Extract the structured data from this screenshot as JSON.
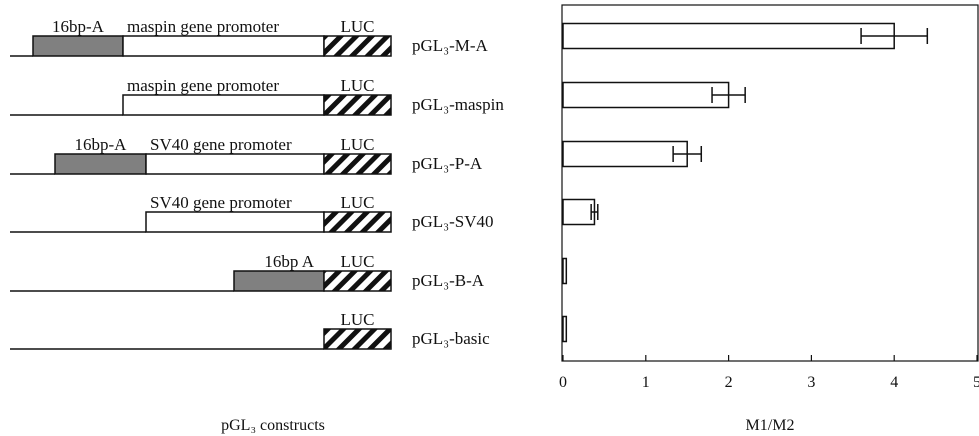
{
  "figure": {
    "left_title": "pGL₃ constructs",
    "constructs": [
      {
        "name": "pGL₃-M-A",
        "segments": [
          {
            "kind": "grey",
            "label": "16bp-A"
          },
          {
            "kind": "white",
            "label": "maspin gene promoter"
          },
          {
            "kind": "hatch",
            "label": "LUC"
          }
        ]
      },
      {
        "name": "pGL₃-maspin",
        "segments": [
          {
            "kind": "white",
            "label": "maspin gene promoter"
          },
          {
            "kind": "hatch",
            "label": "LUC"
          }
        ]
      },
      {
        "name": "pGL₃-P-A",
        "segments": [
          {
            "kind": "grey",
            "label": "16bp-A"
          },
          {
            "kind": "white",
            "label": "SV40 gene promoter"
          },
          {
            "kind": "hatch",
            "label": "LUC"
          }
        ]
      },
      {
        "name": "pGL₃-SV40",
        "segments": [
          {
            "kind": "white",
            "label": "SV40 gene promoter"
          },
          {
            "kind": "hatch",
            "label": "LUC"
          }
        ]
      },
      {
        "name": "pGL₃-B-A",
        "segments": [
          {
            "kind": "grey",
            "label": "16bp A"
          },
          {
            "kind": "hatch",
            "label": "LUC"
          }
        ]
      },
      {
        "name": "pGL₃-basic",
        "segments": [
          {
            "kind": "hatch",
            "label": "LUC"
          }
        ]
      }
    ]
  },
  "chart_data": {
    "type": "bar",
    "orientation": "horizontal",
    "categories": [
      "pGL₃-M-A",
      "pGL₃-maspin",
      "pGL₃-P-A",
      "pGL₃-SV40",
      "pGL₃-B-A",
      "pGL₃-basic"
    ],
    "values": [
      4.0,
      2.0,
      1.5,
      0.38,
      0.04,
      0.04
    ],
    "errors": [
      0.4,
      0.2,
      0.17,
      0.04,
      0,
      0
    ],
    "xlabel": "M1/M2",
    "xlim": [
      0,
      5
    ],
    "xticks": [
      "0",
      "1",
      "2",
      "3",
      "4",
      "5"
    ],
    "grid": false,
    "bar_fill": "#ffffff",
    "bar_stroke": "#111111"
  }
}
